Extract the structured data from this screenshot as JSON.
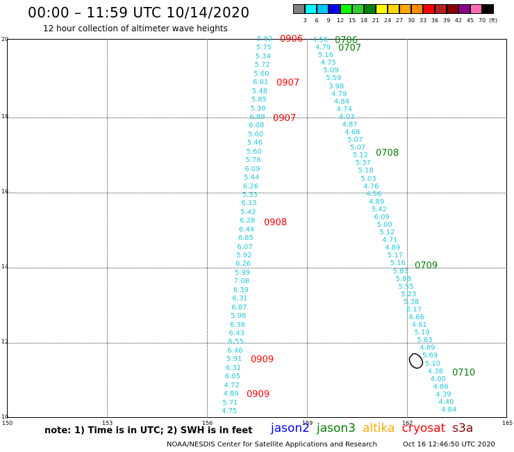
{
  "header": {
    "title": "00:00 – 11:59 UTC 10/14/2020",
    "subtitle": "12 hour collection of altimeter wave heights"
  },
  "legend": {
    "unit": "(ft)",
    "levels": [
      "3",
      "6",
      "9",
      "12",
      "15",
      "18",
      "21",
      "24",
      "27",
      "30",
      "33",
      "36",
      "39",
      "42",
      "45",
      "70"
    ],
    "colors": [
      "#808080",
      "#00ffff",
      "#00c8ff",
      "#0000ff",
      "#00ff00",
      "#32cd32",
      "#008000",
      "#ffff00",
      "#ffd700",
      "#ffa500",
      "#ff8c00",
      "#ff0000",
      "#b22222",
      "#8b0000",
      "#8b008b",
      "#ff69b4",
      "#000000"
    ]
  },
  "axes": {
    "x_ticks": [
      "150",
      "153",
      "156",
      "159",
      "162",
      "165"
    ],
    "y_ticks": [
      "10",
      "12",
      "14",
      "16",
      "18",
      "20"
    ]
  },
  "track_a": {
    "color": "#20c8d8",
    "values": [
      "5.92",
      "5.75",
      "5.34",
      "5.72",
      "5.60",
      "6.81",
      "5.48",
      "5.85",
      "5.30",
      "6.89",
      "6.08",
      "5.60",
      "5.46",
      "5.60",
      "5.78",
      "6.09",
      "5.44",
      "6.26",
      "5.33",
      "6.13",
      "5.42",
      "6.28",
      "6.44",
      "6.85",
      "6.07",
      "5.92",
      "6.26",
      "5.99",
      "7.08",
      "6.39",
      "6.31",
      "6.87",
      "5.98",
      "6.38",
      "6.43",
      "6.55",
      "6.46",
      "5.91",
      "6.31",
      "6.05",
      "4.72",
      "4.89",
      "5.71",
      "4.75"
    ]
  },
  "track_b": {
    "color": "#20c8d8",
    "values": [
      "4.56",
      "4.79",
      "5.16",
      "4.75",
      "5.09",
      "5.59",
      "3.98",
      "4.79",
      "4.84",
      "4.74",
      "6.03",
      "4.87",
      "4.68",
      "5.07",
      "5.07",
      "5.12",
      "5.37",
      "5.18",
      "5.03",
      "4.76",
      "4.56",
      "4.89",
      "5.42",
      "6.09",
      "5.00",
      "5.12",
      "4.71",
      "4.89",
      "5.17",
      "5.16",
      "5.83",
      "5.88",
      "5.55",
      "5.23",
      "5.38",
      "6.17",
      "6.66",
      "4.61",
      "5.19",
      "5.63",
      "4.89",
      "5.69",
      "5.10",
      "4.38",
      "4.00",
      "4.86",
      "4.39",
      "4.40",
      "4.84"
    ]
  },
  "passes": [
    {
      "label": "0906",
      "color": "#ff0000"
    },
    {
      "label": "0907",
      "color": "#ff0000"
    },
    {
      "label": "0907",
      "color": "#ff0000"
    },
    {
      "label": "0908",
      "color": "#ff0000"
    },
    {
      "label": "0909",
      "color": "#ff0000"
    },
    {
      "label": "0909",
      "color": "#ff0000"
    },
    {
      "label": "0706",
      "color": "#008000"
    },
    {
      "label": "0707",
      "color": "#008000"
    },
    {
      "label": "0708",
      "color": "#008000"
    },
    {
      "label": "0709",
      "color": "#008000"
    },
    {
      "label": "0710",
      "color": "#008000"
    }
  ],
  "footer": {
    "note": "note:  1) Time is in UTC;  2) SWH is in feet",
    "satellites": [
      {
        "name": "jason2",
        "color": "#0000ff"
      },
      {
        "name": "jason3",
        "color": "#008000"
      },
      {
        "name": "altika",
        "color": "#ffa500"
      },
      {
        "name": "cryosat",
        "color": "#ff0000"
      },
      {
        "name": "s3a",
        "color": "#8b0000"
      }
    ],
    "credit": "NOAA/NESDIS Center for Satellite Applications and Research",
    "timestamp": "Oct 16 12:46:50 UTC 2020"
  }
}
